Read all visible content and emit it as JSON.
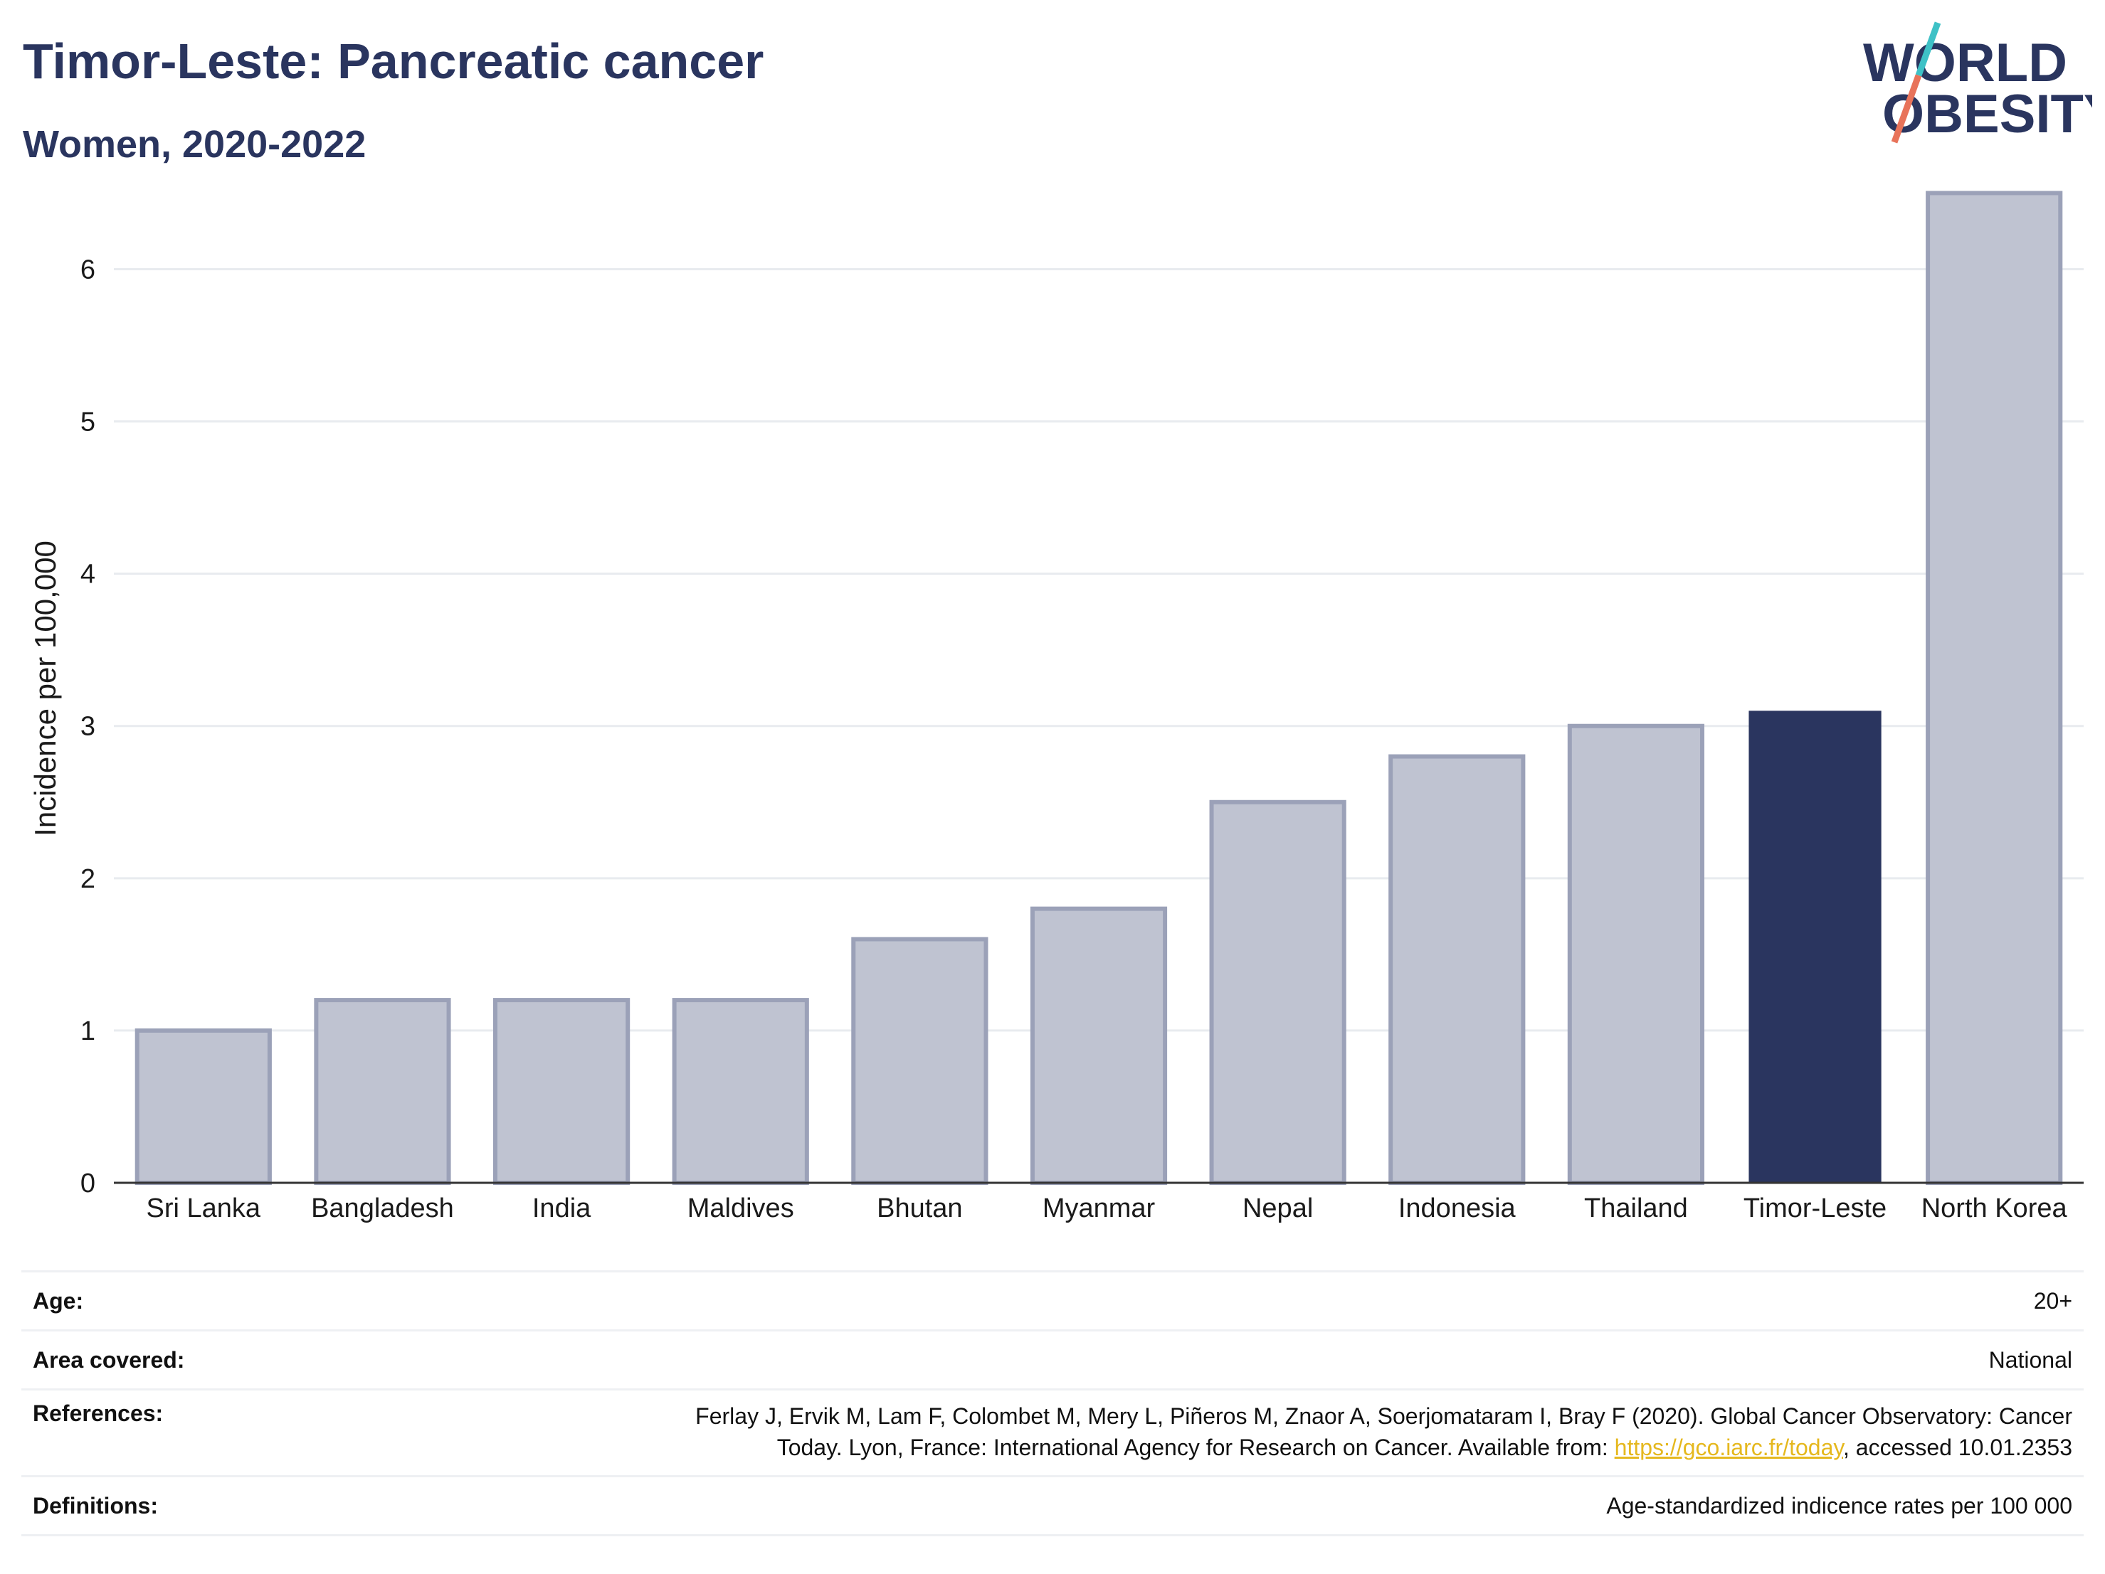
{
  "header": {
    "title": "Timor-Leste: Pancreatic cancer",
    "subtitle": "Women, 2020-2022"
  },
  "logo": {
    "line1": "WORLD",
    "line2": "OBESITY",
    "text_color": "#2a355f",
    "slash_top_color": "#3ec1c6",
    "slash_bottom_color": "#e8735a"
  },
  "chart_data": {
    "type": "bar",
    "ylabel": "Incidence per 100,000",
    "xlabel": "",
    "ylim": [
      0,
      6.6
    ],
    "yticks": [
      0,
      1,
      2,
      3,
      4,
      5,
      6
    ],
    "grid": true,
    "categories": [
      "Sri Lanka",
      "Bangladesh",
      "India",
      "Maldives",
      "Bhutan",
      "Myanmar",
      "Nepal",
      "Indonesia",
      "Thailand",
      "Timor-Leste",
      "North Korea"
    ],
    "values": [
      1.0,
      1.2,
      1.2,
      1.2,
      1.6,
      1.8,
      2.5,
      2.8,
      3.0,
      3.1,
      6.5
    ],
    "highlight": "Timor-Leste",
    "colors": {
      "bar": "#bfc3d1",
      "bar_outline": "#9ba1b8",
      "highlight": "#2a355f",
      "grid": "#e8ebef",
      "axis": "#333333"
    }
  },
  "info": {
    "age": {
      "label": "Age:",
      "value": "20+"
    },
    "area": {
      "label": "Area covered:",
      "value": "National"
    },
    "references": {
      "label": "References:",
      "text_line1": "Ferlay J, Ervik M, Lam F, Colombet M, Mery L, Piñeros M, Znaor A, Soerjomataram I, Bray F (2020). Global Cancer Observatory: Cancer",
      "text_line2_before": "Today. Lyon, France: International Agency for Research on Cancer. Available from: ",
      "link": "https://gco.iarc.fr/today",
      "text_line2_after": ", accessed 10.01.2353"
    },
    "definitions": {
      "label": "Definitions:",
      "value": "Age-standardized indicence rates per 100 000"
    }
  }
}
